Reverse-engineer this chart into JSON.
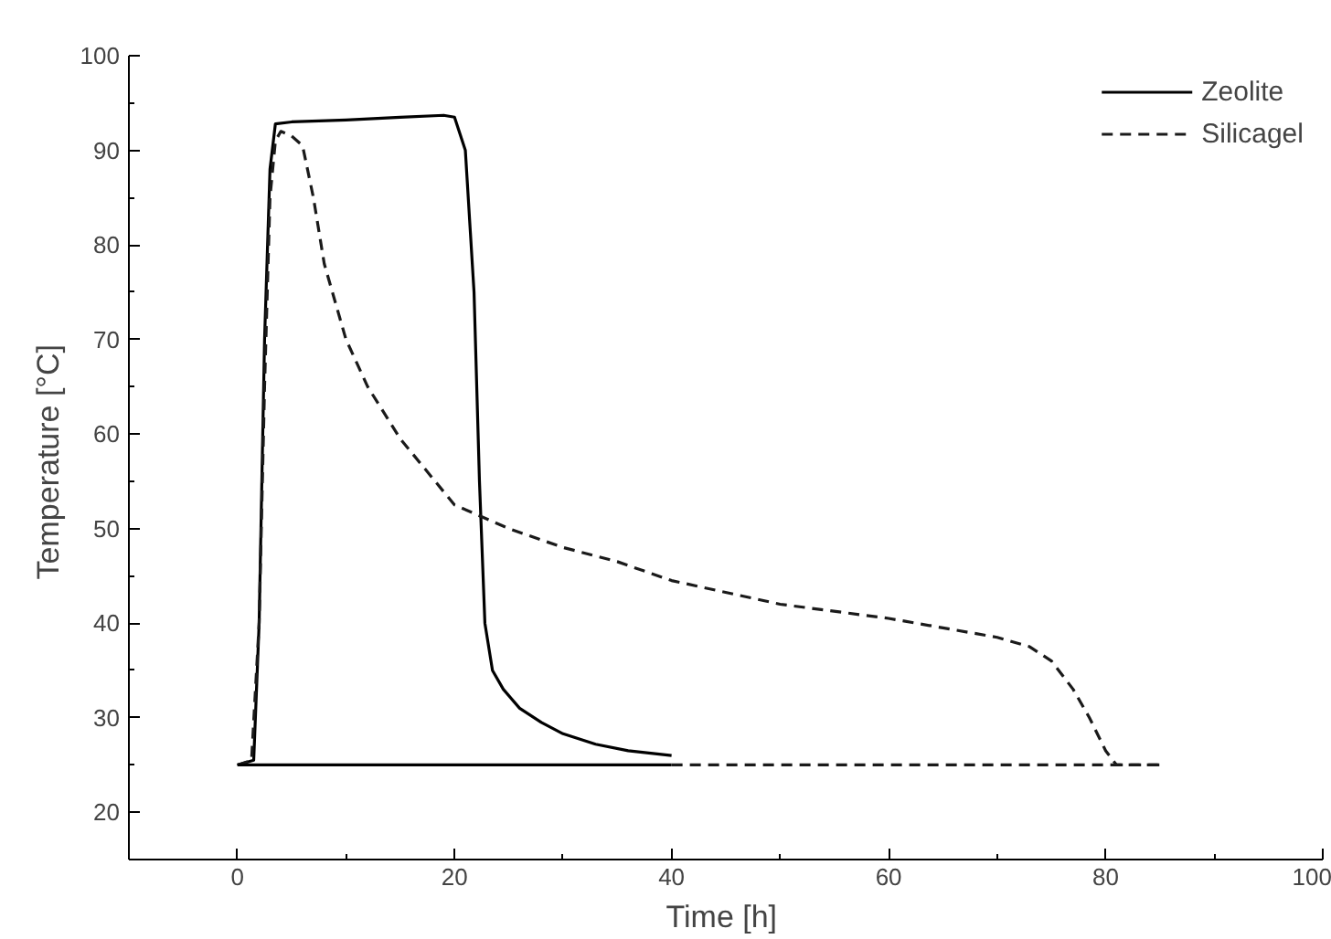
{
  "chart_data": {
    "type": "line",
    "xlabel": "Time  [h]",
    "ylabel": "Temperature  [°C]",
    "xlim": [
      -10,
      100
    ],
    "ylim": [
      15,
      100
    ],
    "xticks": [
      0,
      20,
      40,
      60,
      80,
      100
    ],
    "yticks": [
      20,
      30,
      40,
      50,
      60,
      70,
      80,
      90,
      100
    ],
    "grid": false,
    "legend": "top right",
    "marker": "none",
    "series": [
      {
        "name": "Zeolite",
        "color": "#000000",
        "line_style": "solid",
        "x": [
          0,
          1.5,
          2,
          2.5,
          3,
          3.5,
          5,
          10,
          15,
          19,
          20,
          21,
          21.8,
          22.3,
          22.8,
          23.5,
          24.5,
          26,
          28,
          30,
          33,
          36,
          40
        ],
        "values": [
          25,
          25.5,
          40,
          70,
          88,
          92.8,
          93,
          93.2,
          93.5,
          93.7,
          93.5,
          90,
          75,
          55,
          40,
          35,
          33,
          31,
          29.5,
          28.3,
          27.2,
          26.5,
          26
        ]
      },
      {
        "name": "Silicagel",
        "color": "#1a1a1a",
        "line_style": "dashed",
        "x": [
          0,
          1.3,
          2,
          2.5,
          3,
          3.5,
          4,
          5,
          6,
          7,
          8,
          10,
          12,
          15,
          20,
          25,
          30,
          35,
          40,
          50,
          60,
          65,
          70,
          73,
          75,
          77,
          78.5,
          80,
          81,
          85
        ],
        "values": [
          25,
          25.5,
          40,
          65,
          85,
          91,
          92,
          91.5,
          90.5,
          85,
          78,
          70,
          65,
          59.5,
          52.5,
          50,
          48,
          46.5,
          44.5,
          42,
          40.5,
          39.5,
          38.5,
          37.5,
          36,
          33,
          30,
          26.5,
          25,
          25
        ]
      },
      {
        "color": "#000000",
        "line_style": "solid",
        "x": [
          0,
          40
        ],
        "values": [
          25,
          25
        ]
      },
      {
        "color": "#1a1a1a",
        "line_style": "dashed",
        "x": [
          40,
          85
        ],
        "values": [
          25,
          25
        ]
      }
    ]
  }
}
